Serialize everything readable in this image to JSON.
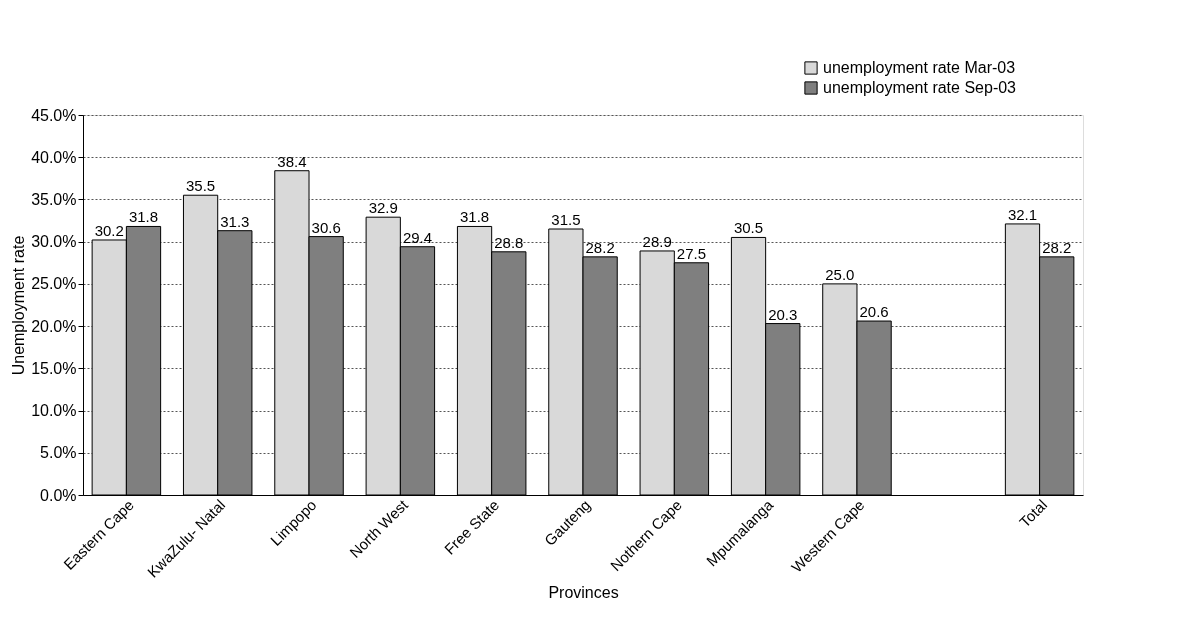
{
  "chart_data": {
    "type": "bar",
    "xlabel": "Provinces",
    "ylabel": "Unemployment rate",
    "categories": [
      "Eastern Cape",
      "KwaZulu- Natal",
      "Limpopo",
      "North West",
      "Free State",
      "Gauteng",
      "Nothern Cape",
      "Mpumalanga",
      "Western Cape",
      null,
      "Total"
    ],
    "series": [
      {
        "name": "unemployment rate  Mar-03",
        "color": "#d9d9d9",
        "values": [
          30.2,
          35.5,
          38.4,
          32.9,
          31.8,
          31.5,
          28.9,
          30.5,
          25.0,
          null,
          32.1
        ],
        "value_labels": [
          "30.2",
          "35.5",
          "38.4",
          "32.9",
          "31.8",
          "31.5",
          "28.9",
          "30.5",
          "25.0",
          null,
          "32.1"
        ]
      },
      {
        "name": "unemployment rate  Sep-03",
        "color": "#7f7f7f",
        "values": [
          31.8,
          31.3,
          30.6,
          29.4,
          28.8,
          28.2,
          27.5,
          20.3,
          20.6,
          null,
          28.2
        ],
        "value_labels": [
          "31.8",
          "31.3",
          "30.6",
          "29.4",
          "28.8",
          "28.2",
          "27.5",
          "20.3",
          "20.6",
          null,
          "28.2"
        ]
      }
    ],
    "ylim": [
      0,
      45
    ],
    "yticks": [
      {
        "value": 0,
        "label": "0.0%"
      },
      {
        "value": 5,
        "label": "5.0%"
      },
      {
        "value": 10,
        "label": "10.0%"
      },
      {
        "value": 15,
        "label": "15.0%"
      },
      {
        "value": 20,
        "label": "20.0%"
      },
      {
        "value": 25,
        "label": "25.0%"
      },
      {
        "value": 30,
        "label": "30.0%"
      },
      {
        "value": 35,
        "label": "35.0%"
      },
      {
        "value": 40,
        "label": "40.0%"
      },
      {
        "value": 45,
        "label": "45.0%"
      }
    ],
    "grid": "y",
    "legend": "top right"
  }
}
